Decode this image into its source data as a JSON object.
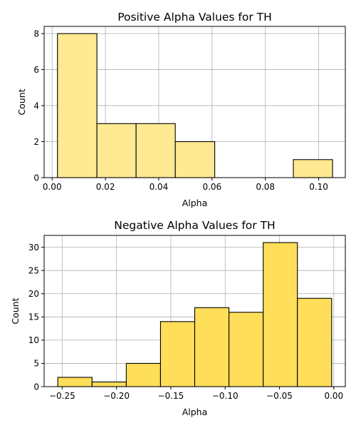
{
  "chart_data": [
    {
      "type": "bar",
      "title": "Positive Alpha Values for TH",
      "xlabel": "Alpha",
      "ylabel": "Count",
      "bin_edges": [
        0.002,
        0.0168,
        0.0315,
        0.0462,
        0.061,
        0.0757,
        0.0905,
        0.1052
      ],
      "values": [
        8,
        3,
        3,
        2,
        0,
        0,
        1
      ],
      "xlim": [
        -0.003,
        0.11
      ],
      "ylim": [
        0,
        8.4
      ],
      "xticks": [
        0.0,
        0.02,
        0.04,
        0.06,
        0.08,
        0.1
      ],
      "xtick_labels": [
        "0.00",
        "0.02",
        "0.04",
        "0.06",
        "0.08",
        "0.10"
      ],
      "yticks": [
        0,
        2,
        4,
        6,
        8
      ],
      "ytick_labels": [
        "0",
        "2",
        "4",
        "6",
        "8"
      ],
      "bar_color": "#ffe992",
      "grid": true
    },
    {
      "type": "bar",
      "title": "Negative Alpha Values for TH",
      "xlabel": "Alpha",
      "ylabel": "Count",
      "bin_edges": [
        -0.254,
        -0.2225,
        -0.191,
        -0.1595,
        -0.128,
        -0.0965,
        -0.065,
        -0.0335,
        -0.002
      ],
      "values": [
        2,
        1,
        5,
        14,
        17,
        16,
        31,
        19
      ],
      "xlim": [
        -0.2666,
        0.0106
      ],
      "ylim": [
        0,
        32.55
      ],
      "xticks": [
        -0.25,
        -0.2,
        -0.15,
        -0.1,
        -0.05,
        0.0
      ],
      "xtick_labels": [
        "−0.25",
        "−0.20",
        "−0.15",
        "−0.10",
        "−0.05",
        "0.00"
      ],
      "yticks": [
        0,
        5,
        10,
        15,
        20,
        25,
        30
      ],
      "ytick_labels": [
        "0",
        "5",
        "10",
        "15",
        "20",
        "25",
        "30"
      ],
      "bar_color": "#ffde59",
      "grid": true
    }
  ]
}
